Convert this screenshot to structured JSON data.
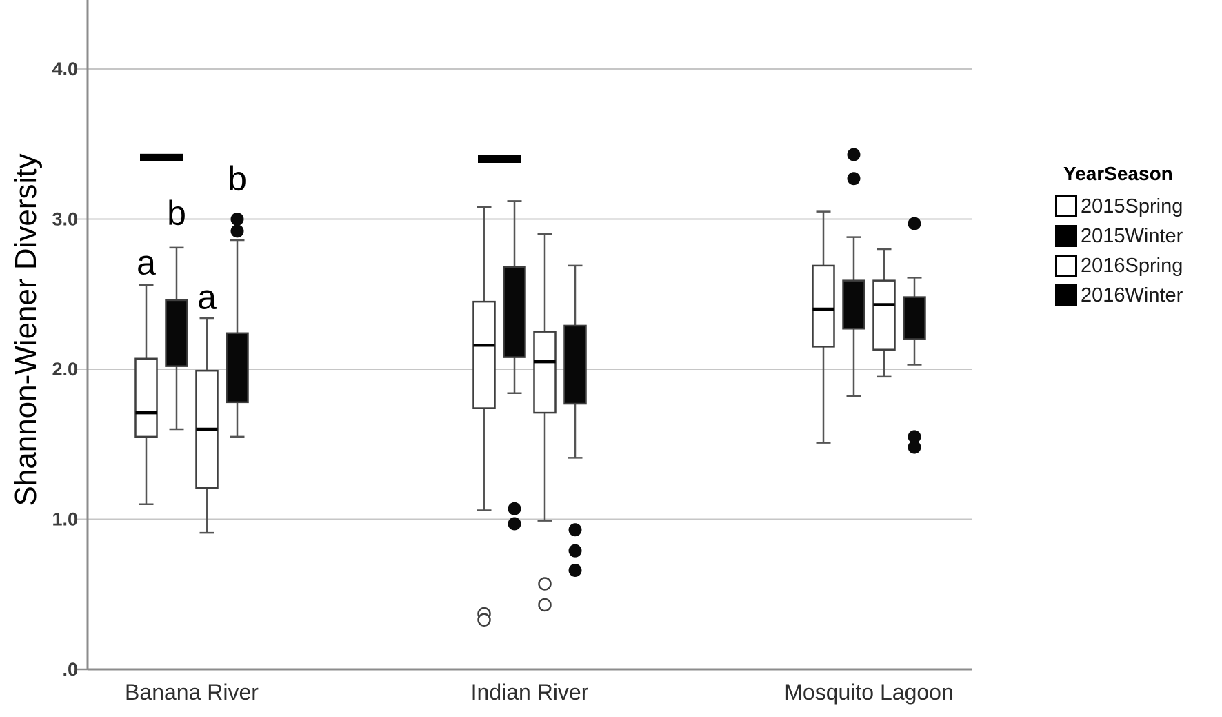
{
  "chart_data": {
    "type": "boxplot",
    "title": "",
    "xlabel": "",
    "ylabel": "Shannon-Wiener Diversity",
    "ylim": [
      0,
      4.46
    ],
    "yticks": [
      {
        "value": 0,
        "label": ".0"
      },
      {
        "value": 1,
        "label": "1.0"
      },
      {
        "value": 2,
        "label": "2.0"
      },
      {
        "value": 3,
        "label": "3.0"
      },
      {
        "value": 4,
        "label": "4.0"
      }
    ],
    "grid": "horizontal-gridlines-at-ticks",
    "categories": [
      "Banana River",
      "Indian River",
      "Mosquito Lagoon"
    ],
    "legend": {
      "title": "YearSeason",
      "position": "right",
      "entries": [
        {
          "label": "2015Spring",
          "fill": "#ffffff"
        },
        {
          "label": "2015Winter",
          "fill": "#000000"
        },
        {
          "label": "2016Spring",
          "fill": "#ffffff"
        },
        {
          "label": "2016Winter",
          "fill": "#000000"
        }
      ]
    },
    "colors": {
      "white_fill": "#ffffff",
      "black_fill": "#080808",
      "box_outline": "#3f3f3f",
      "whisker": "#555555",
      "median": "#000000",
      "grid": "#c6c6c6",
      "axis": "#8c8c8c",
      "tick_text": "#3d3d3d",
      "annotation": "#000000"
    },
    "groups": [
      {
        "category": "Banana River",
        "boxes": [
          {
            "season": "2015Spring",
            "fill": "white",
            "whisker_low": 1.1,
            "q1": 1.55,
            "median": 1.71,
            "q3": 2.07,
            "whisker_high": 2.56,
            "outliers_filled": [],
            "outliers_open": [],
            "letter": "a",
            "letter_value": 2.71
          },
          {
            "season": "2015Winter",
            "fill": "black",
            "whisker_low": 1.6,
            "q1": 2.02,
            "median": null,
            "q3": 2.46,
            "whisker_high": 2.81,
            "outliers_filled": [],
            "outliers_open": [],
            "letter": "b",
            "letter_value": 3.04
          },
          {
            "season": "2016Spring",
            "fill": "white",
            "whisker_low": 0.91,
            "q1": 1.21,
            "median": 1.6,
            "q3": 1.99,
            "whisker_high": 2.34,
            "outliers_filled": [],
            "outliers_open": [],
            "letter": "a",
            "letter_value": 2.48
          },
          {
            "season": "2016Winter",
            "fill": "black",
            "whisker_low": 1.55,
            "q1": 1.78,
            "median": null,
            "q3": 2.24,
            "whisker_high": 2.86,
            "outliers_filled": [
              3.0,
              2.92
            ],
            "outliers_open": [],
            "letter": "b",
            "letter_value": 3.27
          }
        ]
      },
      {
        "category": "Indian River",
        "boxes": [
          {
            "season": "2015Spring",
            "fill": "white",
            "whisker_low": 1.06,
            "q1": 1.74,
            "median": 2.16,
            "q3": 2.45,
            "whisker_high": 3.08,
            "outliers_filled": [],
            "outliers_open": [
              0.37,
              0.33
            ],
            "letter": null,
            "letter_value": null
          },
          {
            "season": "2015Winter",
            "fill": "black",
            "whisker_low": 1.84,
            "q1": 2.08,
            "median": null,
            "q3": 2.68,
            "whisker_high": 3.12,
            "outliers_filled": [
              1.07,
              0.97
            ],
            "outliers_open": [],
            "letter": null,
            "letter_value": null
          },
          {
            "season": "2016Spring",
            "fill": "white",
            "whisker_low": 0.99,
            "q1": 1.71,
            "median": 2.05,
            "q3": 2.25,
            "whisker_high": 2.9,
            "outliers_filled": [],
            "outliers_open": [
              0.57,
              0.43
            ],
            "letter": null,
            "letter_value": null
          },
          {
            "season": "2016Winter",
            "fill": "black",
            "whisker_low": 1.41,
            "q1": 1.77,
            "median": null,
            "q3": 2.29,
            "whisker_high": 2.69,
            "outliers_filled": [
              0.93,
              0.79,
              0.66
            ],
            "outliers_open": [],
            "letter": null,
            "letter_value": null
          }
        ]
      },
      {
        "category": "Mosquito Lagoon",
        "boxes": [
          {
            "season": "2015Spring",
            "fill": "white",
            "whisker_low": 1.51,
            "q1": 2.15,
            "median": 2.4,
            "q3": 2.69,
            "whisker_high": 3.05,
            "outliers_filled": [],
            "outliers_open": [],
            "letter": null,
            "letter_value": null
          },
          {
            "season": "2015Winter",
            "fill": "black",
            "whisker_low": 1.82,
            "q1": 2.27,
            "median": null,
            "q3": 2.59,
            "whisker_high": 2.88,
            "outliers_filled": [
              3.43,
              3.27
            ],
            "outliers_open": [],
            "letter": null,
            "letter_value": null
          },
          {
            "season": "2016Spring",
            "fill": "white",
            "whisker_low": 1.95,
            "q1": 2.13,
            "median": 2.43,
            "q3": 2.59,
            "whisker_high": 2.8,
            "outliers_filled": [],
            "outliers_open": [],
            "letter": null,
            "letter_value": null
          },
          {
            "season": "2016Winter",
            "fill": "black",
            "whisker_low": 2.03,
            "q1": 2.2,
            "median": null,
            "q3": 2.48,
            "whisker_high": 2.61,
            "outliers_filled": [
              2.97,
              1.55,
              1.48
            ],
            "outliers_open": [],
            "letter": null,
            "letter_value": null
          }
        ]
      }
    ],
    "significance_bars": [
      {
        "category": "Banana River",
        "between": [
          "2015Spring",
          "2015Winter"
        ],
        "value": 3.41
      },
      {
        "category": "Indian River",
        "between": [
          "2015Spring",
          "2015Winter"
        ],
        "value": 3.4
      }
    ]
  }
}
